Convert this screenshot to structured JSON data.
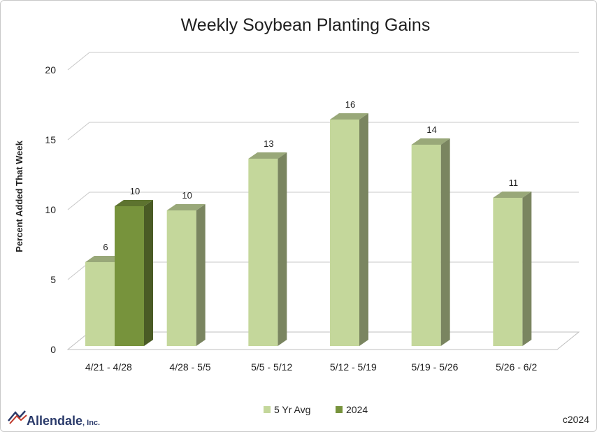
{
  "chart_data": {
    "type": "bar",
    "title": "Weekly Soybean Planting Gains",
    "ylabel": "Percent Added That Week",
    "xlabel": "",
    "ylim": [
      0,
      20
    ],
    "yticks": [
      0,
      5,
      10,
      15,
      20
    ],
    "categories": [
      "4/21 - 4/28",
      "4/28 - 5/5",
      "5/5 - 5/12",
      "5/12 - 5/19",
      "5/19 - 5/26",
      "5/26 - 6/2"
    ],
    "series": [
      {
        "name": "5 Yr Avg",
        "values": [
          6,
          9.7,
          13.4,
          16.2,
          14.4,
          10.6
        ],
        "labels": [
          "6",
          "10",
          "13",
          "16",
          "14",
          "11"
        ],
        "color": "#c4d79b"
      },
      {
        "name": "2024",
        "values": [
          10,
          null,
          null,
          null,
          null,
          null
        ],
        "labels": [
          "10",
          "",
          "",
          "",
          "",
          ""
        ],
        "color": "#77933c"
      }
    ],
    "grid": true,
    "legend": "bottom",
    "style": "3d-column"
  },
  "footer": {
    "logo": "Allendale, Inc.",
    "logo_main": "Allendale",
    "logo_suffix": ", Inc.",
    "copyright": "c2024"
  }
}
